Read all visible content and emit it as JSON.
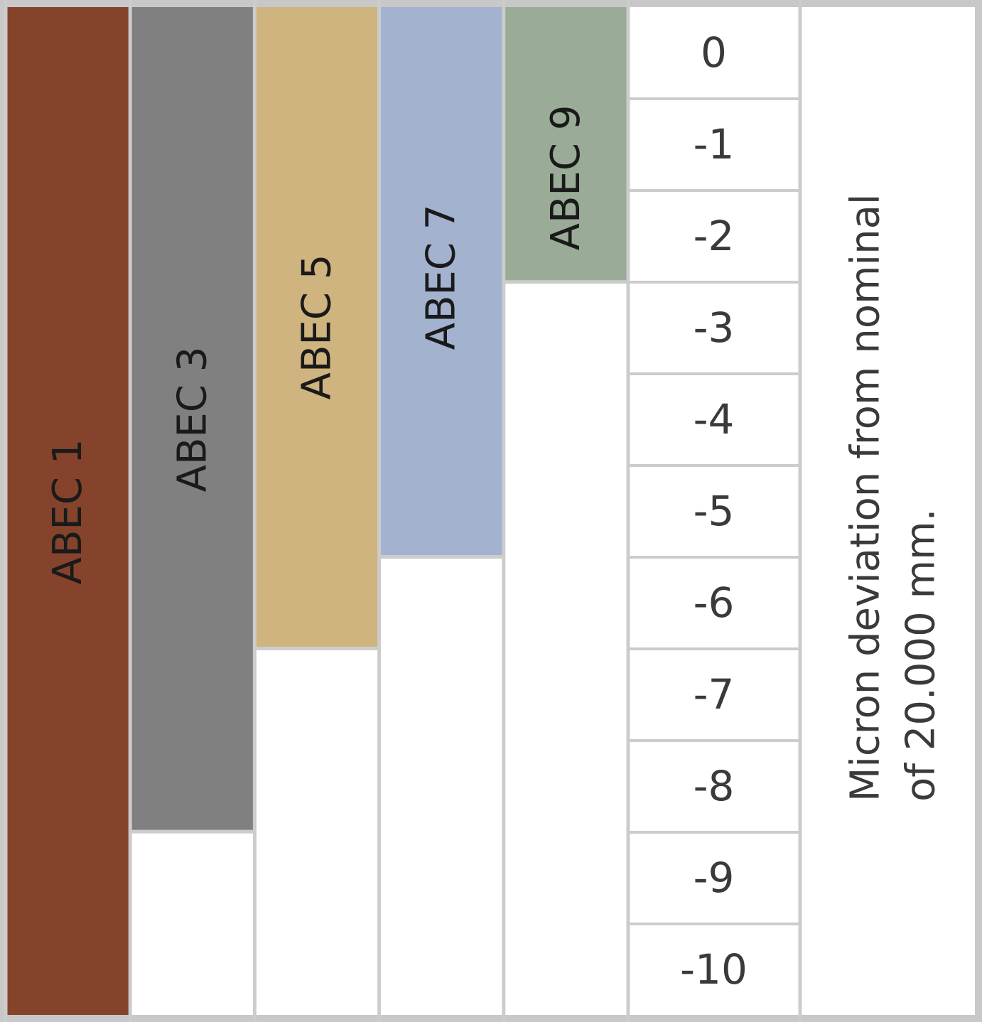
{
  "chart_data": {
    "type": "bar",
    "categories": [
      "ABEC 1",
      "ABEC 3",
      "ABEC 5",
      "ABEC 7",
      "ABEC 9"
    ],
    "values": [
      -11,
      -9,
      -7,
      -6,
      -3
    ],
    "colors": [
      "#86432c",
      "#808080",
      "#cfb47f",
      "#a3b2cf",
      "#9aac98"
    ],
    "ticks": [
      "0",
      "-1",
      "-2",
      "-3",
      "-4",
      "-5",
      "-6",
      "-7",
      "-8",
      "-9",
      "-10"
    ],
    "ylabel_lines": [
      "Micron deviation from nominal",
      "of 20.000 mm."
    ],
    "ylim": [
      -11,
      0
    ],
    "grid": true
  }
}
